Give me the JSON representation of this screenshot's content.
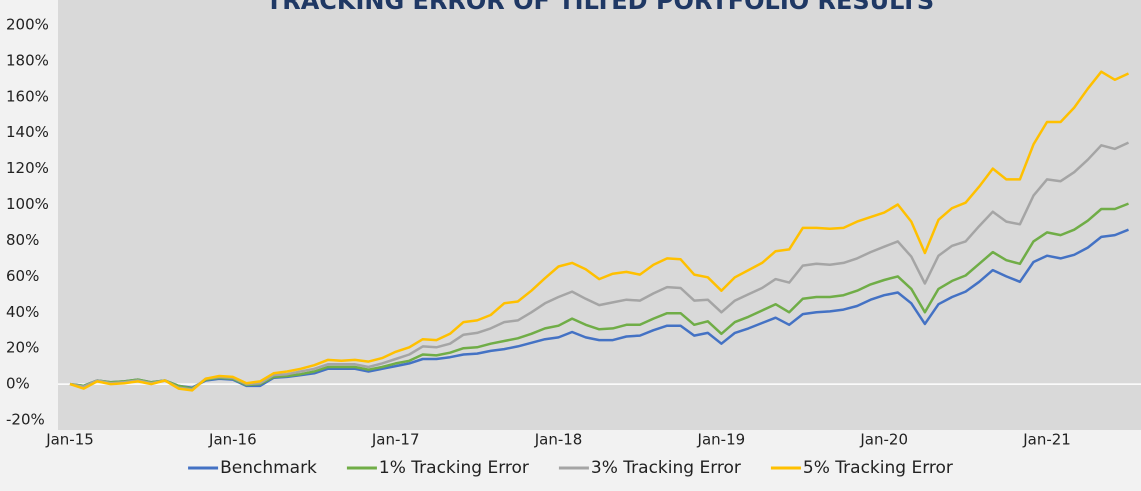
{
  "chart_data": {
    "type": "line",
    "title": "TRACKING ERROR OF TILTED PORTFOLIO RESULTS",
    "categories": [
      "Jan-15",
      null,
      null,
      null,
      null,
      null,
      null,
      null,
      null,
      null,
      null,
      null,
      "Jan-16",
      null,
      null,
      null,
      null,
      null,
      null,
      null,
      null,
      null,
      null,
      null,
      "Jan-17",
      null,
      null,
      null,
      null,
      null,
      null,
      null,
      null,
      null,
      null,
      null,
      "Jan-18",
      null,
      null,
      null,
      null,
      null,
      null,
      null,
      null,
      null,
      null,
      null,
      "Jan-19",
      null,
      null,
      null,
      null,
      null,
      null,
      null,
      null,
      null,
      null,
      null,
      "Jan-20",
      null,
      null,
      null,
      null,
      null,
      null,
      null,
      null,
      null,
      null,
      null,
      "Jan-21",
      null,
      null,
      null,
      null,
      null,
      null
    ],
    "series": [
      {
        "name": "Benchmark",
        "color": "#4472c4",
        "values": [
          0,
          -1,
          2,
          1,
          1.5,
          2.5,
          1,
          2,
          -1,
          -2,
          2,
          3,
          2.5,
          -1,
          -1,
          3.5,
          4,
          5,
          6,
          8.5,
          8.5,
          8.5,
          7,
          8.5,
          10,
          11.5,
          14,
          14,
          15,
          16.5,
          17,
          18.5,
          19.5,
          21,
          23,
          25,
          26,
          29,
          26,
          24.5,
          24.5,
          26.5,
          27,
          30,
          32.5,
          32.5,
          27,
          28.5,
          22.5,
          28.5,
          31,
          34,
          37,
          33,
          39,
          40,
          40.5,
          41.5,
          43.5,
          47,
          49.5,
          51,
          45,
          33.5,
          44.5,
          48.5,
          51.5,
          57,
          63.5,
          60,
          57,
          68,
          71.5,
          70,
          72,
          76,
          82,
          83,
          86
        ]
      },
      {
        "name": "1% Tracking Error",
        "color": "#70ad47",
        "values": [
          0,
          -1,
          2,
          1,
          1.5,
          2.5,
          1,
          2,
          -1,
          -2.5,
          2.5,
          3.5,
          3,
          -0.5,
          0,
          4,
          4.5,
          5.5,
          7,
          9.5,
          9.5,
          9.5,
          8,
          9.5,
          11.5,
          13,
          16.5,
          16,
          17.5,
          20,
          20.5,
          22.5,
          24,
          25.5,
          28,
          31,
          32.5,
          36.5,
          33,
          30.5,
          31,
          33,
          33,
          36.5,
          39.5,
          39.5,
          33,
          35,
          28,
          34.5,
          37.5,
          41,
          44.5,
          40,
          47.5,
          48.5,
          48.5,
          49.5,
          52,
          55.5,
          58,
          60,
          53,
          40,
          53,
          57.5,
          60.5,
          67,
          73.5,
          69,
          67,
          79.5,
          84.5,
          83,
          86,
          91,
          97.5,
          97.5,
          100.5
        ]
      },
      {
        "name": "3% Tracking Error",
        "color": "#a5a5a5",
        "values": [
          0,
          -1.5,
          2,
          0.5,
          1,
          2,
          0.5,
          2,
          -2,
          -3,
          3,
          4,
          3.5,
          0,
          0.5,
          5,
          5.5,
          7,
          8.5,
          11,
          11,
          11,
          9.5,
          11.5,
          14,
          16.5,
          21,
          20.5,
          22.5,
          27.5,
          28.5,
          31,
          34.5,
          35.5,
          40,
          45,
          48.5,
          51.5,
          47.5,
          44,
          45.5,
          47,
          46.5,
          50.5,
          54,
          53.5,
          46.5,
          47,
          40,
          46.5,
          50,
          53.5,
          58.5,
          56.5,
          66,
          67,
          66.5,
          67.5,
          70,
          73.5,
          76.5,
          79.5,
          71,
          56,
          71.5,
          77,
          79.5,
          88,
          96,
          90.5,
          89,
          105,
          114,
          113,
          118,
          125,
          133,
          131,
          134.5
        ]
      },
      {
        "name": "5% Tracking Error",
        "color": "#ffc000",
        "values": [
          0,
          -2.5,
          1.5,
          0,
          0.5,
          1.5,
          0,
          2,
          -2.5,
          -3.5,
          3,
          4.5,
          4,
          0.5,
          1.5,
          6,
          7,
          8.5,
          10.5,
          13.5,
          13,
          13.5,
          12.5,
          14.5,
          18,
          20.5,
          25,
          24.5,
          28,
          34.5,
          35.5,
          38.5,
          45,
          46,
          52,
          59,
          65.5,
          67.5,
          64,
          58.5,
          61.5,
          62.5,
          61,
          66.5,
          70,
          69.5,
          61,
          59.5,
          52,
          59.5,
          63.5,
          67.5,
          74,
          75,
          87,
          87,
          86.5,
          87,
          90.5,
          93,
          95.5,
          100,
          90.5,
          73,
          91.5,
          98,
          101,
          110,
          120,
          114,
          114,
          133.5,
          146,
          146,
          154,
          164.5,
          174,
          169.5,
          173
        ]
      }
    ],
    "ylim": [
      -20,
      200
    ],
    "yticks": [
      {
        "value": -20,
        "label": "-20%"
      },
      {
        "value": 0,
        "label": "0%"
      },
      {
        "value": 20,
        "label": "20%"
      },
      {
        "value": 40,
        "label": "40%"
      },
      {
        "value": 60,
        "label": "60%"
      },
      {
        "value": 80,
        "label": "80%"
      },
      {
        "value": 100,
        "label": "100%"
      },
      {
        "value": 120,
        "label": "120%"
      },
      {
        "value": 140,
        "label": "140%"
      },
      {
        "value": 160,
        "label": "160%"
      },
      {
        "value": 180,
        "label": "180%"
      },
      {
        "value": 200,
        "label": "200%"
      }
    ],
    "grid": false,
    "legend": "bottom"
  }
}
